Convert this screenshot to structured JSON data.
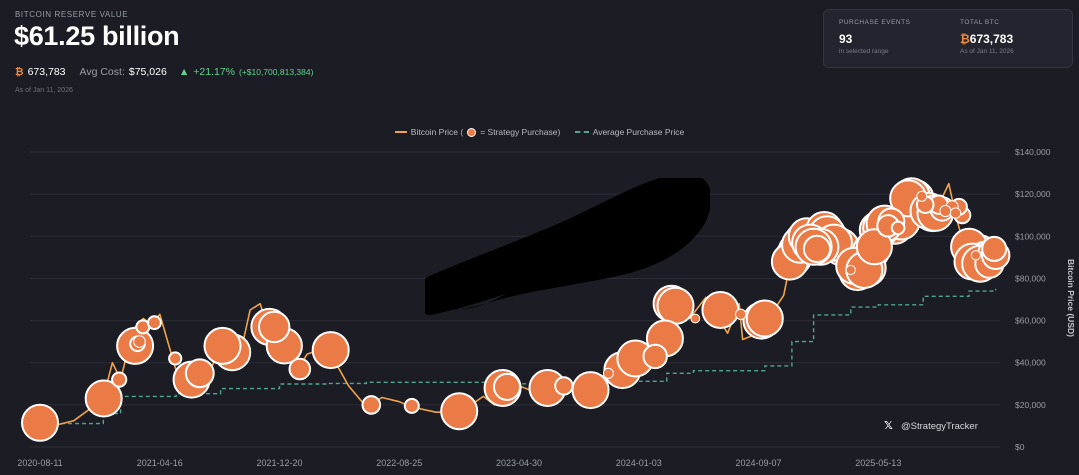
{
  "header": {
    "label": "BITCOIN RESERVE VALUE",
    "value": "$61.25 billion",
    "btc_symbol": "₿",
    "btc_amount": "673,783",
    "avg_cost_label": "Avg Cost:",
    "avg_cost_value": "$75,026",
    "change_arrow": "▲",
    "change_pct": "+21.17%",
    "change_abs": "(+$10,700,813,384)",
    "as_of": "As of Jan 11, 2026"
  },
  "summary_card": {
    "events_label": "PURCHASE EVENTS",
    "events_value": "93",
    "events_sub": "in selected range",
    "total_label": "TOTAL BTC",
    "total_symbol": "₿",
    "total_value": "673,783",
    "total_sub": "As of Jan 11, 2026"
  },
  "legend": {
    "price_label": "Bitcoin Price (",
    "price_label_end": " = Strategy Purchase)",
    "avg_label": "Average Purchase Price"
  },
  "watermark": {
    "icon": "x-logo-icon",
    "glyph": "𝕏",
    "handle": "@StrategyTracker"
  },
  "colors": {
    "price_line": "#f0a34a",
    "avg_line": "#4fa58e",
    "bubble_fill": "#ea7b47",
    "bubble_stroke": "#ffffff",
    "background": "#1c1d24",
    "positive": "#5fd38b"
  },
  "chart_data": {
    "type": "line",
    "ylabel": "Bitcoin Price (USD)",
    "ylim": [
      0,
      140000
    ],
    "y_ticks": [
      "$0",
      "$20,000",
      "$40,000",
      "$60,000",
      "$80,000",
      "$100,000",
      "$120,000",
      "$140,000"
    ],
    "y_tick_values": [
      0,
      20000,
      40000,
      60000,
      80000,
      100000,
      120000,
      140000
    ],
    "x_ticks": [
      "2020-08-11",
      "2021-04-16",
      "2021-12-20",
      "2022-08-25",
      "2023-04-30",
      "2024-01-03",
      "2024-09-07",
      "2025-05-13"
    ],
    "grid": true,
    "legend_position": "top-center",
    "series": [
      {
        "name": "Bitcoin Price",
        "style": "solid",
        "points": [
          [
            "2020-08-11",
            11500
          ],
          [
            "2020-09-15",
            10500
          ],
          [
            "2020-10-20",
            12500
          ],
          [
            "2020-11-25",
            18500
          ],
          [
            "2020-12-20",
            23500
          ],
          [
            "2021-01-08",
            40000
          ],
          [
            "2021-01-25",
            32000
          ],
          [
            "2021-02-20",
            56000
          ],
          [
            "2021-03-13",
            61000
          ],
          [
            "2021-03-30",
            58000
          ],
          [
            "2021-04-16",
            63000
          ],
          [
            "2021-05-19",
            37000
          ],
          [
            "2021-06-22",
            32000
          ],
          [
            "2021-07-20",
            30000
          ],
          [
            "2021-08-20",
            49000
          ],
          [
            "2021-09-07",
            47000
          ],
          [
            "2021-09-28",
            42000
          ],
          [
            "2021-10-20",
            65000
          ],
          [
            "2021-11-10",
            68000
          ],
          [
            "2021-12-05",
            49000
          ],
          [
            "2021-12-20",
            47000
          ],
          [
            "2022-01-24",
            36000
          ],
          [
            "2022-02-15",
            44000
          ],
          [
            "2022-03-28",
            47500
          ],
          [
            "2022-05-12",
            29000
          ],
          [
            "2022-06-18",
            19000
          ],
          [
            "2022-07-20",
            23500
          ],
          [
            "2022-08-25",
            21500
          ],
          [
            "2022-09-20",
            19000
          ],
          [
            "2022-11-09",
            16500
          ],
          [
            "2022-12-30",
            16500
          ],
          [
            "2023-02-15",
            24000
          ],
          [
            "2023-03-10",
            20000
          ],
          [
            "2023-04-14",
            30500
          ],
          [
            "2023-04-30",
            29000
          ],
          [
            "2023-06-15",
            25000
          ],
          [
            "2023-07-13",
            31500
          ],
          [
            "2023-09-11",
            25000
          ],
          [
            "2023-10-24",
            34500
          ],
          [
            "2023-12-05",
            44000
          ],
          [
            "2024-01-03",
            43000
          ],
          [
            "2024-01-23",
            39500
          ],
          [
            "2024-02-28",
            62000
          ],
          [
            "2024-03-14",
            73000
          ],
          [
            "2024-04-17",
            61000
          ],
          [
            "2024-05-21",
            71000
          ],
          [
            "2024-07-05",
            54000
          ],
          [
            "2024-07-29",
            68000
          ],
          [
            "2024-08-05",
            51000
          ],
          [
            "2024-09-07",
            54000
          ],
          [
            "2024-10-29",
            72000
          ],
          [
            "2024-11-22",
            99000
          ],
          [
            "2024-12-17",
            107000
          ],
          [
            "2025-01-10",
            93000
          ],
          [
            "2025-01-21",
            106000
          ],
          [
            "2025-02-28",
            80000
          ],
          [
            "2025-04-08",
            76000
          ],
          [
            "2025-05-13",
            103000
          ],
          [
            "2025-06-23",
            100000
          ],
          [
            "2025-07-14",
            122000
          ],
          [
            "2025-08-14",
            124000
          ],
          [
            "2025-09-01",
            108000
          ],
          [
            "2025-10-06",
            125000
          ],
          [
            "2025-10-20",
            110000
          ],
          [
            "2025-11-21",
            84000
          ],
          [
            "2025-12-15",
            86000
          ],
          [
            "2026-01-11",
            92000
          ]
        ]
      },
      {
        "name": "Average Purchase Price",
        "style": "dashed",
        "points": [
          [
            "2020-08-11",
            11100
          ],
          [
            "2020-12-20",
            15900
          ],
          [
            "2021-01-25",
            24000
          ],
          [
            "2021-05-20",
            25300
          ],
          [
            "2021-08-20",
            27700
          ],
          [
            "2021-12-20",
            29900
          ],
          [
            "2022-03-28",
            30200
          ],
          [
            "2022-06-18",
            30700
          ],
          [
            "2023-03-15",
            30000
          ],
          [
            "2023-06-28",
            30400
          ],
          [
            "2023-12-20",
            31200
          ],
          [
            "2024-03-01",
            35000
          ],
          [
            "2024-04-25",
            36200
          ],
          [
            "2024-09-20",
            38500
          ],
          [
            "2024-11-15",
            50000
          ],
          [
            "2024-12-30",
            62700
          ],
          [
            "2025-03-17",
            66400
          ],
          [
            "2025-05-13",
            67500
          ],
          [
            "2025-08-14",
            71500
          ],
          [
            "2025-11-17",
            74000
          ],
          [
            "2026-01-11",
            75026
          ]
        ]
      }
    ],
    "purchases": [
      [
        "2020-08-11",
        11500,
        21000
      ],
      [
        "2020-12-21",
        23000,
        29646
      ],
      [
        "2021-01-22",
        32000,
        314
      ],
      [
        "2021-02-24",
        48000,
        19452
      ],
      [
        "2021-03-01",
        49000,
        328
      ],
      [
        "2021-03-05",
        50000,
        205
      ],
      [
        "2021-03-12",
        57000,
        262
      ],
      [
        "2021-04-05",
        59000,
        253
      ],
      [
        "2021-05-18",
        42000,
        229
      ],
      [
        "2021-06-21",
        32000,
        13005
      ],
      [
        "2021-07-08",
        35000,
        1200
      ],
      [
        "2021-08-24",
        48000,
        3907
      ],
      [
        "2021-09-13",
        45000,
        5050
      ],
      [
        "2021-11-29",
        57000,
        7002
      ],
      [
        "2021-12-09",
        57000,
        1434
      ],
      [
        "2021-12-30",
        48000,
        1914
      ],
      [
        "2022-01-31",
        37000,
        660
      ],
      [
        "2022-04-05",
        46000,
        4167
      ],
      [
        "2022-06-28",
        20000,
        480
      ],
      [
        "2022-09-20",
        19500,
        301
      ],
      [
        "2022-12-27",
        17000,
        2395
      ],
      [
        "2023-03-27",
        28000,
        6455
      ],
      [
        "2023-04-05",
        28500,
        1045
      ],
      [
        "2023-06-28",
        28000,
        12333
      ],
      [
        "2023-08-01",
        29000,
        467
      ],
      [
        "2023-09-25",
        27000,
        5445
      ],
      [
        "2023-11-01",
        35000,
        155
      ],
      [
        "2023-11-30",
        36500,
        16130
      ],
      [
        "2023-12-27",
        42000,
        14620
      ],
      [
        "2024-02-06",
        43000,
        850
      ],
      [
        "2024-02-26",
        51500,
        3000
      ],
      [
        "2024-03-11",
        68000,
        12000
      ],
      [
        "2024-03-19",
        67000,
        9245
      ],
      [
        "2024-04-29",
        61000,
        122
      ],
      [
        "2024-06-20",
        65000,
        11931
      ],
      [
        "2024-08-01",
        63000,
        169
      ],
      [
        "2024-09-13",
        60000,
        18300
      ],
      [
        "2024-09-20",
        61000,
        7420
      ],
      [
        "2024-11-11",
        88000,
        27200
      ],
      [
        "2024-11-18",
        90000,
        51780
      ],
      [
        "2024-11-25",
        93000,
        55500
      ],
      [
        "2024-12-02",
        96000,
        15400
      ],
      [
        "2024-12-09",
        98000,
        21550
      ],
      [
        "2024-12-16",
        100000,
        15350
      ],
      [
        "2024-12-23",
        97000,
        5262
      ],
      [
        "2024-12-30",
        95000,
        2138
      ],
      [
        "2025-01-06",
        94000,
        1070
      ],
      [
        "2025-01-13",
        95000,
        2530
      ],
      [
        "2025-01-21",
        103000,
        11000
      ],
      [
        "2025-01-27",
        101000,
        10107
      ],
      [
        "2025-02-10",
        97000,
        7633
      ],
      [
        "2025-02-24",
        95000,
        20356
      ],
      [
        "2025-03-17",
        84000,
        130
      ],
      [
        "2025-03-24",
        86000,
        6911
      ],
      [
        "2025-03-31",
        83000,
        22048
      ],
      [
        "2025-04-14",
        84000,
        3459
      ],
      [
        "2025-04-21",
        85000,
        6556
      ],
      [
        "2025-04-28",
        93000,
        15355
      ],
      [
        "2025-05-05",
        95000,
        1895
      ],
      [
        "2025-05-12",
        103000,
        13390
      ],
      [
        "2025-05-19",
        104000,
        7390
      ],
      [
        "2025-05-26",
        106000,
        4020
      ],
      [
        "2025-06-02",
        105000,
        705
      ],
      [
        "2025-06-09",
        107000,
        1045
      ],
      [
        "2025-06-16",
        105000,
        10100
      ],
      [
        "2025-06-23",
        104000,
        245
      ],
      [
        "2025-06-30",
        107000,
        4980
      ],
      [
        "2025-07-14",
        118000,
        4225
      ],
      [
        "2025-07-21",
        119000,
        6220
      ],
      [
        "2025-07-29",
        118000,
        21021
      ],
      [
        "2025-08-11",
        119000,
        155
      ],
      [
        "2025-08-18",
        115000,
        430
      ],
      [
        "2025-08-25",
        112000,
        3081
      ],
      [
        "2025-09-02",
        111000,
        4048
      ],
      [
        "2025-09-08",
        111000,
        1955
      ],
      [
        "2025-09-15",
        115000,
        525
      ],
      [
        "2025-09-22",
        113000,
        850
      ],
      [
        "2025-09-29",
        112000,
        196
      ],
      [
        "2025-10-13",
        114000,
        220
      ],
      [
        "2025-10-20",
        111000,
        168
      ],
      [
        "2025-10-27",
        114000,
        390
      ],
      [
        "2025-11-03",
        110000,
        397
      ],
      [
        "2025-11-17",
        95000,
        8178
      ],
      [
        "2025-12-01",
        91000,
        130
      ],
      [
        "2025-12-08",
        92000,
        10624
      ],
      [
        "2025-12-15",
        88000,
        10645
      ],
      [
        "2025-12-29",
        87000,
        1229
      ],
      [
        "2026-01-05",
        92000,
        1287
      ],
      [
        "2026-01-11",
        91000,
        1170
      ],
      [
        "2025-12-22",
        89000,
        5000
      ],
      [
        "2025-11-24",
        88000,
        3200
      ],
      [
        "2025-12-10",
        87000,
        2500
      ],
      [
        "2026-01-08",
        94000,
        900
      ]
    ]
  }
}
